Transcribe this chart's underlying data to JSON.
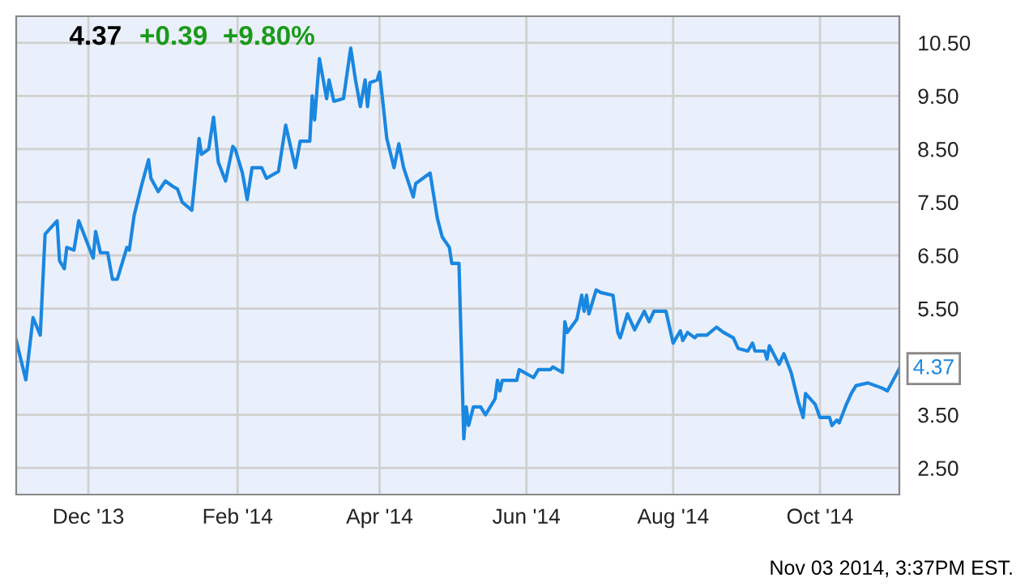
{
  "chart_data": {
    "type": "line",
    "title": "4.37",
    "subtitle": "+0.39  +9.80%",
    "x": [
      "2013-11-01",
      "2013-11-05",
      "2013-11-08",
      "2013-11-11",
      "2013-11-13",
      "2013-11-15",
      "2013-11-18",
      "2013-11-19",
      "2013-11-21",
      "2013-11-22",
      "2013-11-25",
      "2013-11-27",
      "2013-12-03",
      "2013-12-04",
      "2013-12-06",
      "2013-12-09",
      "2013-12-11",
      "2013-12-13",
      "2013-12-17",
      "2013-12-18",
      "2013-12-20",
      "2013-12-23",
      "2013-12-26",
      "2013-12-27",
      "2013-12-30",
      "2014-01-02",
      "2014-01-05",
      "2014-01-07",
      "2014-01-09",
      "2014-01-13",
      "2014-01-16",
      "2014-01-17",
      "2014-01-20",
      "2014-01-22",
      "2014-01-24",
      "2014-01-27",
      "2014-01-30",
      "2014-01-31",
      "2014-02-03",
      "2014-02-05",
      "2014-02-07",
      "2014-02-11",
      "2014-02-13",
      "2014-02-18",
      "2014-02-21",
      "2014-02-25",
      "2014-02-27",
      "2014-03-03",
      "2014-03-04",
      "2014-03-05",
      "2014-03-07",
      "2014-03-10",
      "2014-03-11",
      "2014-03-13",
      "2014-03-17",
      "2014-03-20",
      "2014-03-22",
      "2014-03-24",
      "2014-03-26",
      "2014-03-27",
      "2014-03-28",
      "2014-03-31",
      "2014-04-01",
      "2014-04-04",
      "2014-04-07",
      "2014-04-09",
      "2014-04-11",
      "2014-04-15",
      "2014-04-16",
      "2014-04-22",
      "2014-04-25",
      "2014-04-27",
      "2014-04-30",
      "2014-05-01",
      "2014-05-04",
      "2014-05-06",
      "2014-05-07",
      "2014-05-08",
      "2014-05-10",
      "2014-05-13",
      "2014-05-15",
      "2014-05-19",
      "2014-05-20",
      "2014-05-21",
      "2014-05-22",
      "2014-05-23",
      "2014-05-28",
      "2014-05-29",
      "2014-06-02",
      "2014-06-04",
      "2014-06-06",
      "2014-06-11",
      "2014-06-12",
      "2014-06-16",
      "2014-06-17",
      "2014-06-18",
      "2014-06-22",
      "2014-06-24",
      "2014-06-25",
      "2014-06-26",
      "2014-06-27",
      "2014-06-30",
      "2014-07-02",
      "2014-07-07",
      "2014-07-09",
      "2014-07-10",
      "2014-07-13",
      "2014-07-16",
      "2014-07-20",
      "2014-07-22",
      "2014-07-24",
      "2014-07-29",
      "2014-08-01",
      "2014-08-04",
      "2014-08-05",
      "2014-08-07",
      "2014-08-10",
      "2014-08-11",
      "2014-08-15",
      "2014-08-19",
      "2014-08-22",
      "2014-08-26",
      "2014-08-28",
      "2014-09-01",
      "2014-09-03",
      "2014-09-04",
      "2014-09-08",
      "2014-09-09",
      "2014-09-10",
      "2014-09-14",
      "2014-09-16",
      "2014-09-19",
      "2014-09-22",
      "2014-09-24",
      "2014-09-25",
      "2014-09-29",
      "2014-10-01",
      "2014-10-05",
      "2014-10-06",
      "2014-10-08",
      "2014-10-09",
      "2014-10-12",
      "2014-10-14",
      "2014-10-16",
      "2014-10-21",
      "2014-10-24",
      "2014-10-27",
      "2014-10-29",
      "2014-11-03"
    ],
    "series": [
      {
        "color": "#1a87e0",
        "values": [
          4.9,
          4.16,
          5.33,
          5.0,
          6.9,
          7.0,
          7.15,
          6.4,
          6.25,
          6.65,
          6.6,
          7.15,
          6.45,
          6.95,
          6.55,
          6.55,
          6.05,
          6.05,
          6.65,
          6.6,
          7.25,
          7.8,
          8.3,
          7.95,
          7.7,
          7.9,
          7.8,
          7.75,
          7.5,
          7.35,
          8.7,
          8.4,
          8.5,
          9.1,
          8.25,
          7.9,
          8.55,
          8.5,
          8.05,
          7.55,
          8.15,
          8.15,
          7.95,
          8.08,
          8.95,
          8.15,
          8.65,
          8.65,
          9.5,
          9.05,
          10.2,
          9.45,
          9.8,
          9.4,
          9.45,
          10.4,
          9.8,
          9.3,
          9.8,
          9.3,
          9.75,
          9.8,
          9.95,
          8.7,
          8.15,
          8.6,
          8.15,
          7.6,
          7.85,
          8.05,
          7.2,
          6.85,
          6.65,
          6.35,
          6.35,
          3.05,
          3.65,
          3.3,
          3.65,
          3.65,
          3.5,
          3.8,
          4.15,
          3.95,
          4.15,
          4.15,
          4.15,
          4.35,
          4.25,
          4.2,
          4.35,
          4.35,
          4.4,
          4.3,
          5.25,
          5.05,
          5.3,
          5.75,
          5.45,
          5.75,
          5.4,
          5.85,
          5.8,
          5.75,
          5.05,
          4.95,
          5.4,
          5.1,
          5.45,
          5.25,
          5.45,
          5.45,
          4.85,
          5.08,
          4.9,
          5.05,
          4.95,
          5.0,
          5.0,
          5.15,
          5.05,
          4.95,
          4.75,
          4.7,
          4.85,
          4.7,
          4.7,
          4.55,
          4.8,
          4.45,
          4.65,
          4.3,
          3.75,
          3.45,
          3.9,
          3.7,
          3.45,
          3.45,
          3.3,
          3.4,
          3.35,
          3.7,
          3.9,
          4.05,
          4.1,
          4.05,
          4.0,
          3.95,
          4.37
        ]
      }
    ],
    "xlim": [
      "2013-11-01",
      "2014-11-03"
    ],
    "xticks": [
      {
        "value": "2013-12-01",
        "label": "Dec '13"
      },
      {
        "value": "2014-02-01",
        "label": "Feb '14"
      },
      {
        "value": "2014-04-01",
        "label": "Apr '14"
      },
      {
        "value": "2014-06-01",
        "label": "Jun '14"
      },
      {
        "value": "2014-08-01",
        "label": "Aug '14"
      },
      {
        "value": "2014-10-01",
        "label": "Oct '14"
      }
    ],
    "ylim": [
      2.0,
      11.0
    ],
    "yticks": [
      {
        "value": 2.5,
        "label": "2.50"
      },
      {
        "value": 3.5,
        "label": "3.50"
      },
      {
        "value": 4.5,
        "label": null
      },
      {
        "value": 5.5,
        "label": "5.50"
      },
      {
        "value": 6.5,
        "label": "6.50"
      },
      {
        "value": 7.5,
        "label": "7.50"
      },
      {
        "value": 8.5,
        "label": "8.50"
      },
      {
        "value": 9.5,
        "label": "9.50"
      },
      {
        "value": 10.5,
        "label": "10.50"
      }
    ],
    "grid": true,
    "line_style": "solid",
    "marker": "none",
    "legend": false,
    "annotations": [
      {
        "text": "4.37",
        "x": "2014-11-03",
        "y": 4.37
      },
      "Nov 03 2014, 3:37PM EST."
    ]
  }
}
